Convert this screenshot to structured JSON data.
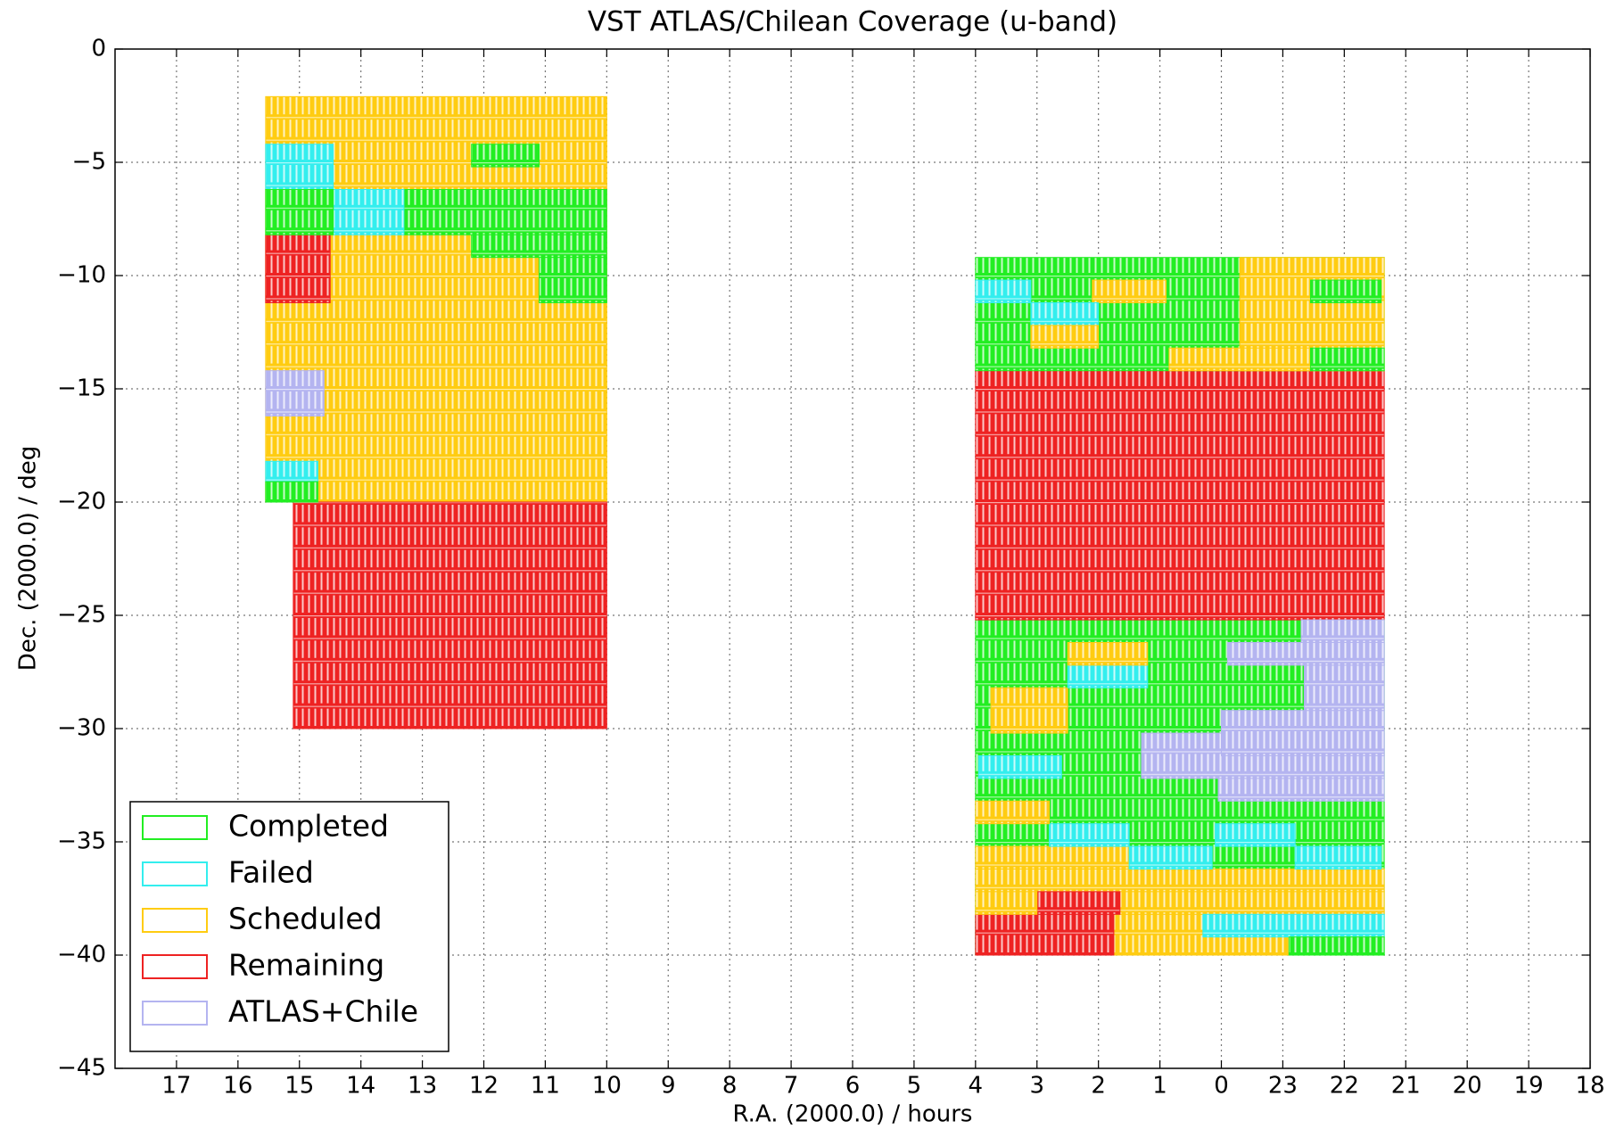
{
  "chart_data": {
    "type": "tiles",
    "title": "VST ATLAS/Chilean Coverage (u-band)",
    "x_label": "R.A. (2000.0) / hours",
    "y_label": "Dec. (2000.0) / deg",
    "xlim": [
      18,
      -6
    ],
    "ylim": [
      -45,
      0
    ],
    "xticks": [
      17,
      16,
      15,
      14,
      13,
      12,
      11,
      10,
      9,
      8,
      7,
      6,
      5,
      4,
      3,
      2,
      1,
      0,
      {
        "value": -1,
        "label": "23"
      },
      {
        "value": -2,
        "label": "22"
      },
      {
        "value": -3,
        "label": "21"
      },
      {
        "value": -4,
        "label": "20"
      },
      {
        "value": -5,
        "label": "19"
      },
      {
        "value": -6,
        "label": "18"
      }
    ],
    "yticks": [
      0,
      {
        "value": -5,
        "label": "−5"
      },
      {
        "value": -10,
        "label": "−10"
      },
      {
        "value": -15,
        "label": "−15"
      },
      {
        "value": -20,
        "label": "−20"
      },
      {
        "value": -25,
        "label": "−25"
      },
      {
        "value": -30,
        "label": "−30"
      },
      {
        "value": -35,
        "label": "−35"
      },
      {
        "value": -40,
        "label": "−40"
      },
      {
        "value": -45,
        "label": "−45"
      }
    ],
    "grid": true,
    "legend": "lower left",
    "series": [
      {
        "name": "Completed",
        "color": "#22ee22",
        "rects": [
          {
            "ra": [
              12.2,
              11.1
            ],
            "dec": [
              -4.2,
              -5.2
            ]
          },
          {
            "ra": [
              15.55,
              14.45
            ],
            "dec": [
              -6.2,
              -8.2
            ]
          },
          {
            "ra": [
              13.3,
              10
            ],
            "dec": [
              -6.2,
              -8.2
            ]
          },
          {
            "ra": [
              12.2,
              10
            ],
            "dec": [
              -8.2,
              -9.2
            ]
          },
          {
            "ra": [
              11.1,
              10
            ],
            "dec": [
              -9.2,
              -11.2
            ]
          },
          {
            "ra": [
              15.55,
              14.7
            ],
            "dec": [
              -19.1,
              -20
            ]
          },
          {
            "ra": [
              4,
              -2.65
            ],
            "dec": [
              -9.2,
              -14.2
            ]
          },
          {
            "ra": [
              -1.45,
              -2.6
            ],
            "dec": [
              -10.2,
              -11.2
            ]
          },
          {
            "ra": [
              -1.45,
              -2.65
            ],
            "dec": [
              -13.2,
              -14.2
            ]
          },
          {
            "ra": [
              4,
              -2.65
            ],
            "dec": [
              -25.2,
              -40
            ]
          },
          {
            "ra": [
              -1.1,
              -2.65
            ],
            "dec": [
              -39.2,
              -40
            ]
          }
        ]
      },
      {
        "name": "Failed",
        "color": "#33eeee",
        "rects": [
          {
            "ra": [
              15.55,
              14.45
            ],
            "dec": [
              -4.2,
              -6.2
            ]
          },
          {
            "ra": [
              14.45,
              13.3
            ],
            "dec": [
              -6.2,
              -8.2
            ]
          },
          {
            "ra": [
              15.55,
              14.7
            ],
            "dec": [
              -18.2,
              -19.1
            ]
          },
          {
            "ra": [
              4,
              3.1
            ],
            "dec": [
              -10.2,
              -11.2
            ]
          },
          {
            "ra": [
              3.1,
              2.0
            ],
            "dec": [
              -11.2,
              -12.2
            ]
          },
          {
            "ra": [
              2.5,
              1.2
            ],
            "dec": [
              -27.2,
              -28.2
            ]
          },
          {
            "ra": [
              3.95,
              2.6
            ],
            "dec": [
              -31.2,
              -32.2
            ]
          },
          {
            "ra": [
              2.8,
              1.5
            ],
            "dec": [
              -34.2,
              -35.2
            ]
          },
          {
            "ra": [
              0.1,
              -1.2
            ],
            "dec": [
              -34.2,
              -35.2
            ]
          },
          {
            "ra": [
              1.5,
              0.15
            ],
            "dec": [
              -35.2,
              -36.2
            ]
          },
          {
            "ra": [
              -1.2,
              -2.6
            ],
            "dec": [
              -35.2,
              -36.2
            ]
          },
          {
            "ra": [
              0.3,
              -2.65
            ],
            "dec": [
              -38.2,
              -39.2
            ]
          }
        ]
      },
      {
        "name": "Scheduled",
        "color": "#ffcc11",
        "rects": [
          {
            "ra": [
              15.55,
              10
            ],
            "dec": [
              -2.1,
              -20
            ]
          },
          {
            "ra": [
              -0.3,
              -2.65
            ],
            "dec": [
              -9.2,
              -14.2
            ]
          },
          {
            "ra": [
              2.1,
              0.9
            ],
            "dec": [
              -10.2,
              -11.2
            ]
          },
          {
            "ra": [
              3.1,
              2.0
            ],
            "dec": [
              -12.2,
              -13.2
            ]
          },
          {
            "ra": [
              0.85,
              -1.45
            ],
            "dec": [
              -13.2,
              -14.2
            ]
          },
          {
            "ra": [
              2.5,
              1.2
            ],
            "dec": [
              -26.2,
              -27.2
            ]
          },
          {
            "ra": [
              3.75,
              2.5
            ],
            "dec": [
              -28.2,
              -30.2
            ]
          },
          {
            "ra": [
              4,
              2.8
            ],
            "dec": [
              -33.2,
              -34.2
            ]
          },
          {
            "ra": [
              4,
              1.5
            ],
            "dec": [
              -35.2,
              -36.2
            ]
          },
          {
            "ra": [
              4,
              -2.65
            ],
            "dec": [
              -36.2,
              -37.2
            ]
          },
          {
            "ra": [
              4,
              3.0
            ],
            "dec": [
              -37.2,
              -38.2
            ]
          },
          {
            "ra": [
              1.65,
              -2.65
            ],
            "dec": [
              -37.2,
              -38.2
            ]
          },
          {
            "ra": [
              1.75,
              -1.1
            ],
            "dec": [
              -38.2,
              -40
            ]
          }
        ]
      },
      {
        "name": "Remaining",
        "color": "#ee2222",
        "rects": [
          {
            "ra": [
              15.55,
              14.5
            ],
            "dec": [
              -8.2,
              -11.2
            ]
          },
          {
            "ra": [
              15.1,
              10
            ],
            "dec": [
              -20,
              -30
            ]
          },
          {
            "ra": [
              4,
              -2.65
            ],
            "dec": [
              -14.2,
              -25.2
            ]
          },
          {
            "ra": [
              3.0,
              1.65
            ],
            "dec": [
              -37.2,
              -38.2
            ]
          },
          {
            "ra": [
              4,
              1.75
            ],
            "dec": [
              -38.2,
              -40
            ]
          }
        ]
      },
      {
        "name": "ATLAS+Chile",
        "color": "#b4b4f0",
        "rects": [
          {
            "ra": [
              15.55,
              14.6
            ],
            "dec": [
              -14.2,
              -16.2
            ]
          },
          {
            "ra": [
              -1.3,
              -2.65
            ],
            "dec": [
              -25.2,
              -27.2
            ]
          },
          {
            "ra": [
              -0.1,
              -2.65
            ],
            "dec": [
              -26.2,
              -27.2
            ]
          },
          {
            "ra": [
              -1.35,
              -2.65
            ],
            "dec": [
              -27.2,
              -29.2
            ]
          },
          {
            "ra": [
              0,
              -2.65
            ],
            "dec": [
              -29.2,
              -31.2
            ]
          },
          {
            "ra": [
              1.3,
              -2.65
            ],
            "dec": [
              -30.2,
              -32.2
            ]
          },
          {
            "ra": [
              0.05,
              -2.65
            ],
            "dec": [
              -32.2,
              -33.2
            ]
          }
        ]
      }
    ]
  }
}
